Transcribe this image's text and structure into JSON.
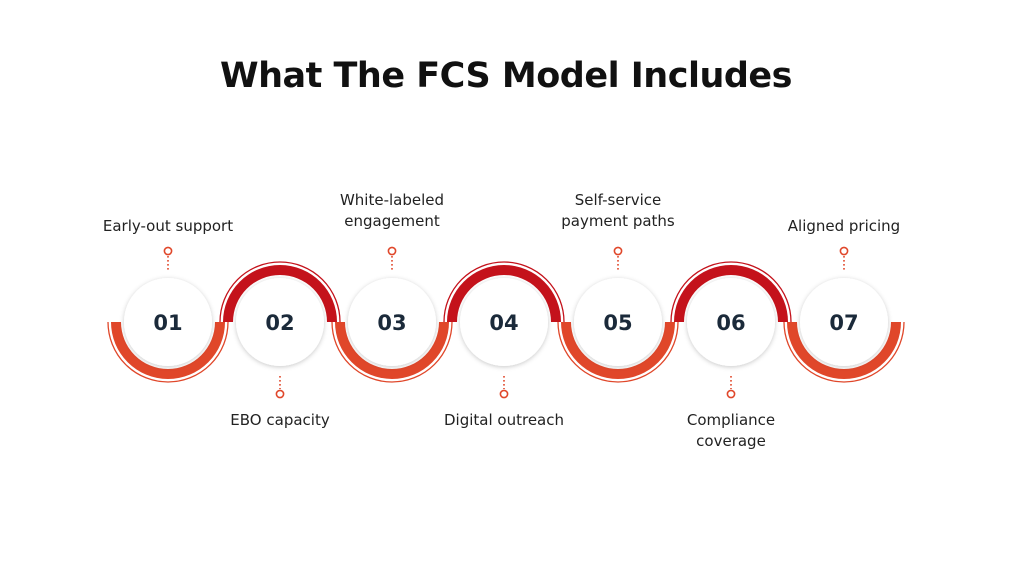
{
  "title": "What The FCS Model Includes",
  "colors": {
    "arc_dark": "#c4121b",
    "arc_orange": "#e0472a",
    "connector": "#e0472a"
  },
  "steps": [
    {
      "number": "01",
      "label": "Early-out support",
      "label_side": "top",
      "arc_side": "bottom"
    },
    {
      "number": "02",
      "label": "EBO capacity",
      "label_side": "bottom",
      "arc_side": "top"
    },
    {
      "number": "03",
      "label": "White-labeled engagement",
      "label_side": "top",
      "arc_side": "bottom"
    },
    {
      "number": "04",
      "label": "Digital outreach",
      "label_side": "bottom",
      "arc_side": "top"
    },
    {
      "number": "05",
      "label": "Self-service payment paths",
      "label_side": "top",
      "arc_side": "bottom"
    },
    {
      "number": "06",
      "label": "Compliance coverage",
      "label_side": "bottom",
      "arc_side": "top"
    },
    {
      "number": "07",
      "label": "Aligned pricing",
      "label_side": "top",
      "arc_side": "bottom"
    }
  ]
}
